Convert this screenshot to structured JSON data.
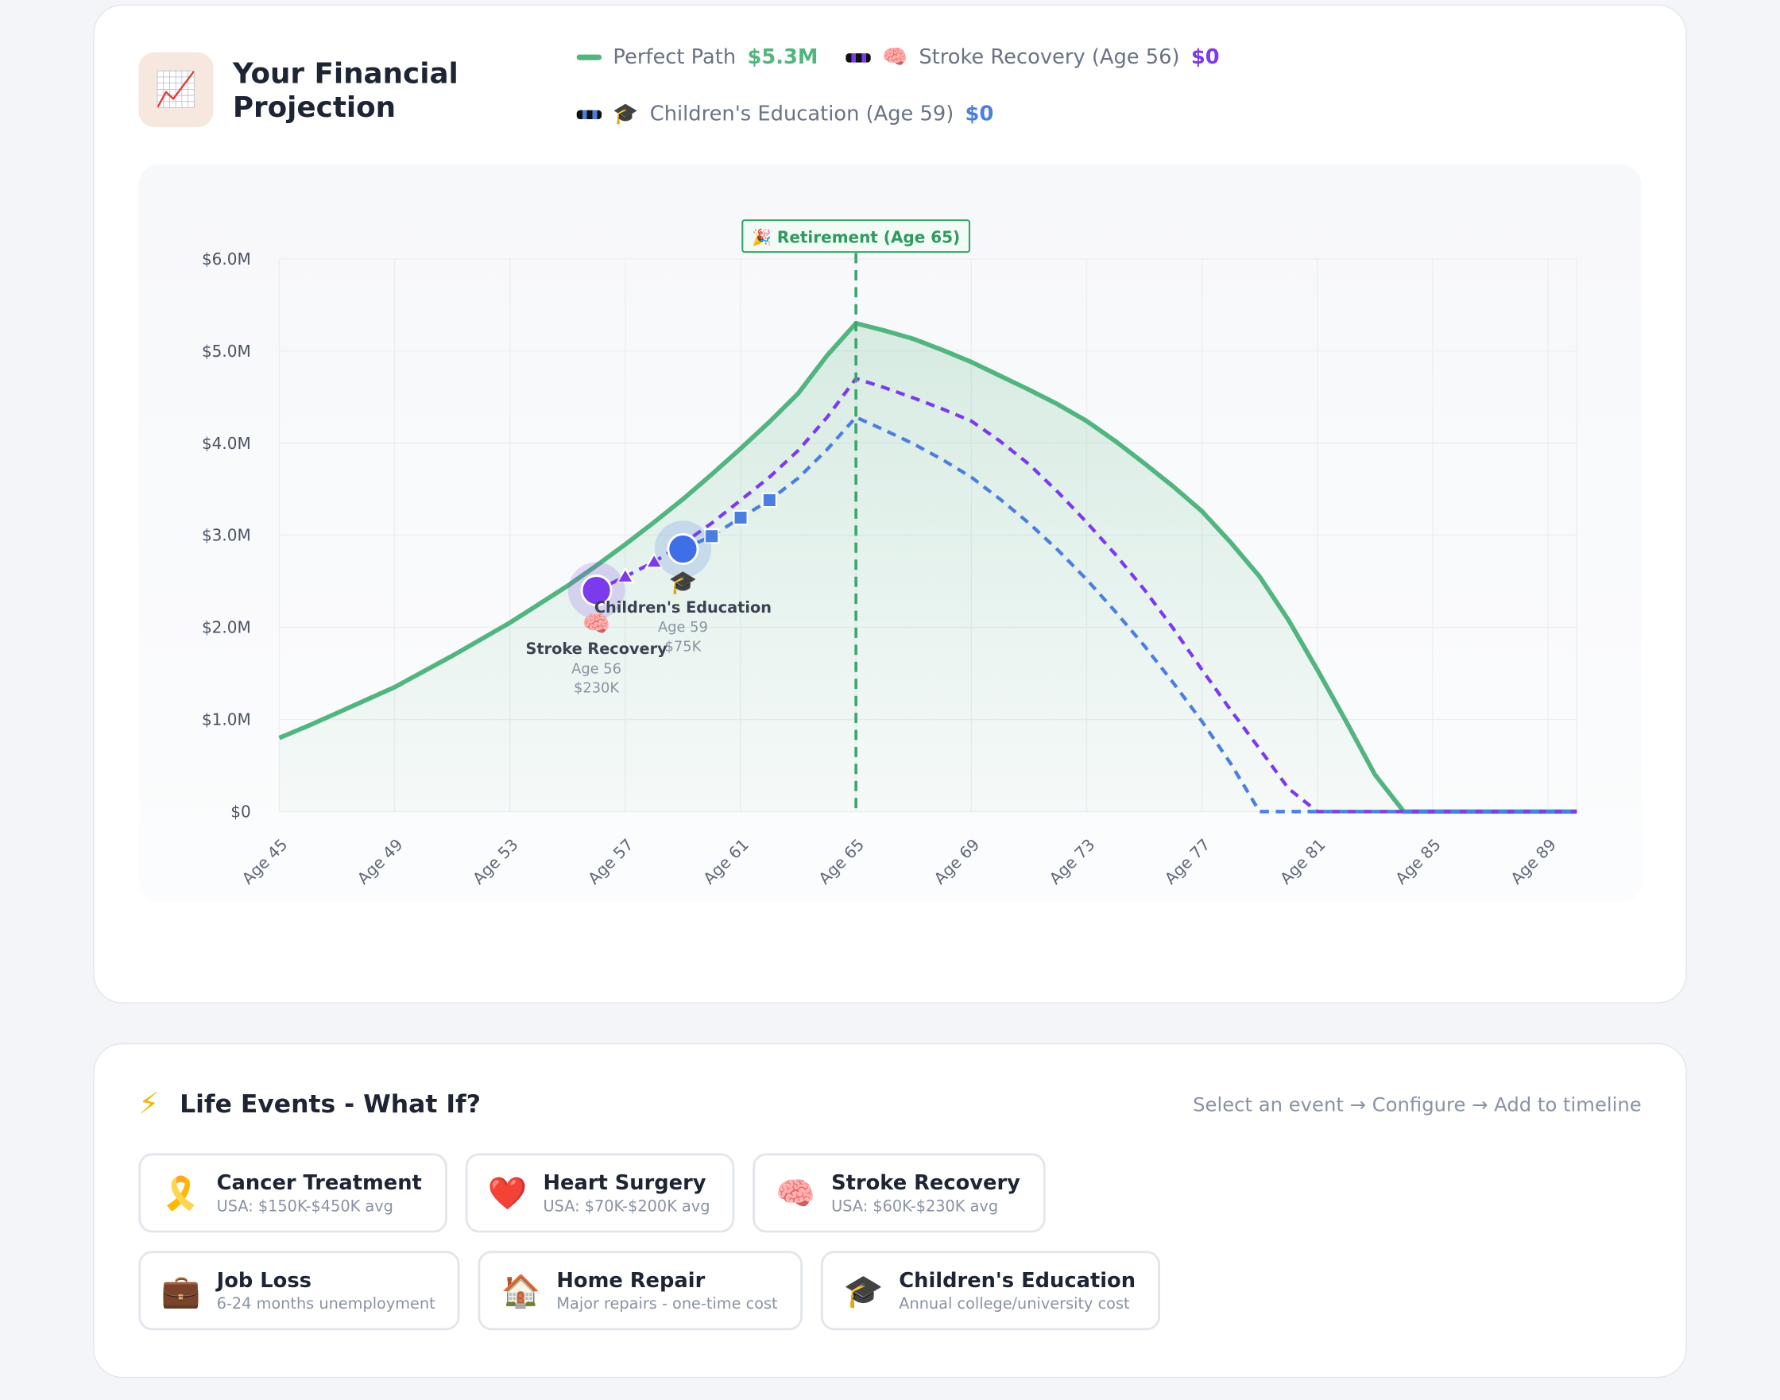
{
  "header": {
    "icon": "📈",
    "title": "Your Financial Projection"
  },
  "chart_data": {
    "type": "line",
    "x": [
      45,
      46,
      47,
      48,
      49,
      50,
      51,
      52,
      53,
      54,
      55,
      56,
      57,
      58,
      59,
      60,
      61,
      62,
      63,
      64,
      65,
      66,
      67,
      68,
      69,
      70,
      71,
      72,
      73,
      74,
      75,
      76,
      77,
      78,
      79,
      80,
      81,
      82,
      83,
      84,
      85,
      86,
      87,
      88,
      89,
      90
    ],
    "series": [
      {
        "name": "Perfect Path",
        "color": "#52b57f",
        "total_label": "$5.3M",
        "dashed": false,
        "fill": true,
        "values": [
          0.8,
          0.93,
          1.07,
          1.21,
          1.35,
          1.52,
          1.69,
          1.87,
          2.05,
          2.25,
          2.45,
          2.67,
          2.9,
          3.14,
          3.39,
          3.66,
          3.94,
          4.23,
          4.54,
          4.95,
          5.3,
          5.22,
          5.13,
          5.01,
          4.88,
          4.73,
          4.58,
          4.42,
          4.24,
          4.02,
          3.78,
          3.53,
          3.26,
          2.92,
          2.55,
          2.08,
          1.54,
          0.98,
          0.4,
          0,
          0,
          0,
          0,
          0,
          0,
          0
        ]
      },
      {
        "name": "Stroke Recovery (Age 56)",
        "icon": "🧠",
        "color": "#7c3aed",
        "total_label": "$0",
        "dashed": true,
        "marker": "triangle",
        "values": [
          null,
          null,
          null,
          null,
          null,
          null,
          null,
          null,
          null,
          null,
          null,
          2.4,
          2.55,
          2.71,
          2.91,
          3.13,
          3.38,
          3.63,
          3.92,
          4.28,
          4.7,
          4.6,
          4.49,
          4.37,
          4.24,
          4.02,
          3.77,
          3.47,
          3.14,
          2.79,
          2.41,
          1.99,
          1.54,
          1.1,
          0.68,
          0.25,
          0,
          0,
          0,
          0,
          0,
          0,
          0,
          0,
          0,
          0
        ]
      },
      {
        "name": "Children's Education (Age 59)",
        "icon": "🎓",
        "color": "#4a7fe0",
        "total_label": "$0",
        "dashed": true,
        "marker": "square",
        "values": [
          null,
          null,
          null,
          null,
          null,
          null,
          null,
          null,
          null,
          null,
          null,
          null,
          null,
          null,
          2.85,
          2.99,
          3.19,
          3.38,
          3.62,
          3.93,
          4.28,
          4.14,
          3.99,
          3.82,
          3.63,
          3.39,
          3.13,
          2.84,
          2.52,
          2.17,
          1.8,
          1.4,
          0.98,
          0.52,
          0,
          0,
          0,
          0,
          0,
          0,
          0,
          0,
          0,
          0,
          0,
          0
        ]
      }
    ],
    "xlim": [
      45,
      90
    ],
    "xticks": [
      {
        "value": 45,
        "label": "Age 45"
      },
      {
        "value": 49,
        "label": "Age 49"
      },
      {
        "value": 53,
        "label": "Age 53"
      },
      {
        "value": 57,
        "label": "Age 57"
      },
      {
        "value": 61,
        "label": "Age 61"
      },
      {
        "value": 65,
        "label": "Age 65"
      },
      {
        "value": 69,
        "label": "Age 69"
      },
      {
        "value": 73,
        "label": "Age 73"
      },
      {
        "value": 77,
        "label": "Age 77"
      },
      {
        "value": 81,
        "label": "Age 81"
      },
      {
        "value": 85,
        "label": "Age 85"
      },
      {
        "value": 89,
        "label": "Age 89"
      }
    ],
    "ylim": [
      0,
      6
    ],
    "yticks": [
      {
        "value": 0,
        "label": "$0"
      },
      {
        "value": 1,
        "label": "$1.0M"
      },
      {
        "value": 2,
        "label": "$2.0M"
      },
      {
        "value": 3,
        "label": "$3.0M"
      },
      {
        "value": 4,
        "label": "$4.0M"
      },
      {
        "value": 5,
        "label": "$5.0M"
      },
      {
        "value": 6,
        "label": "$6.0M"
      }
    ],
    "grid": true,
    "retirement": {
      "x": 65,
      "label": "🎉 Retirement (Age 65)"
    },
    "events": [
      {
        "x": 56,
        "y": 2.4,
        "icon": "🧠",
        "label": "Stroke Recovery",
        "age_label": "Age 56",
        "cost_label": "$230K",
        "color": "#7c3aed"
      },
      {
        "x": 59,
        "y": 2.85,
        "icon": "🎓",
        "label": "Children's Education",
        "age_label": "Age 59",
        "cost_label": "$75K",
        "color": "#3f6fe6"
      }
    ]
  },
  "life_events": {
    "icon": "⚡",
    "title": "Life Events - What If?",
    "hint": "Select an event → Configure → Add to timeline",
    "items": [
      {
        "icon": "🎗️",
        "title": "Cancer Treatment",
        "subtitle": "USA: $150K-$450K avg"
      },
      {
        "icon": "❤️",
        "title": "Heart Surgery",
        "subtitle": "USA: $70K-$200K avg"
      },
      {
        "icon": "🧠",
        "title": "Stroke Recovery",
        "subtitle": "USA: $60K-$230K avg"
      },
      {
        "icon": "💼",
        "title": "Job Loss",
        "subtitle": "6-24 months unemployment"
      },
      {
        "icon": "🏠",
        "title": "Home Repair",
        "subtitle": "Major repairs - one-time cost"
      },
      {
        "icon": "🎓",
        "title": "Children's Education",
        "subtitle": "Annual college/university cost"
      }
    ]
  }
}
